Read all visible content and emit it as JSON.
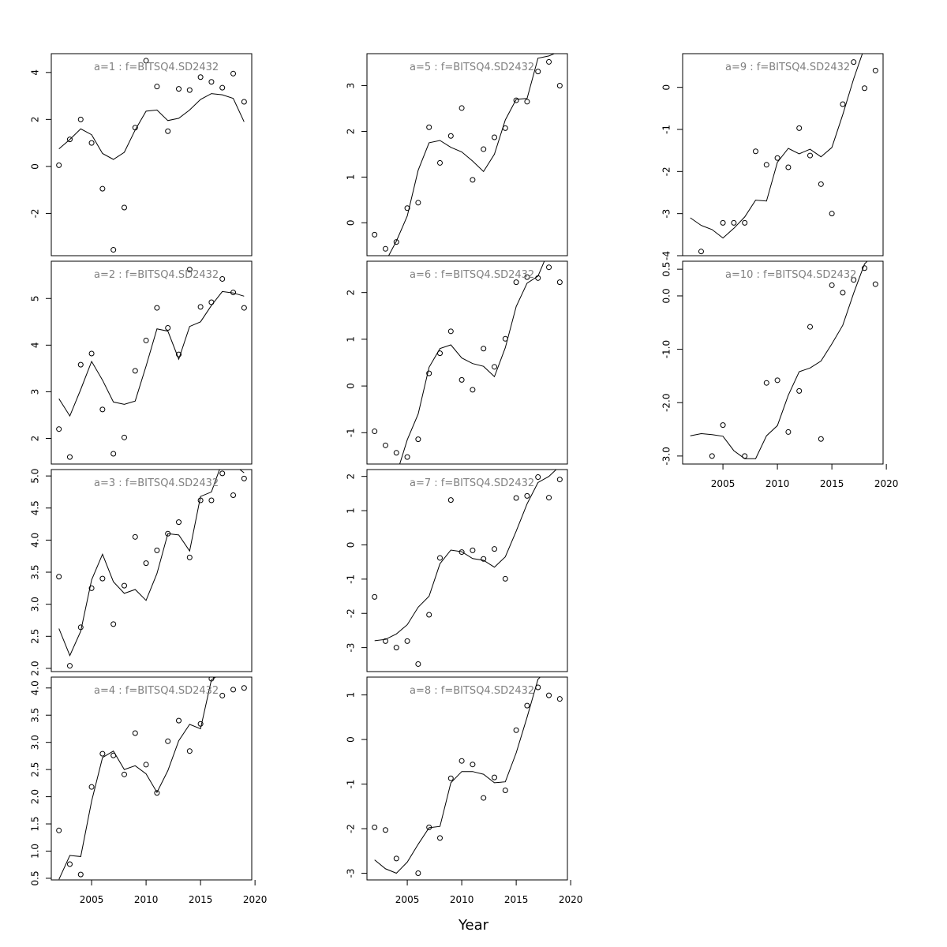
{
  "figure": {
    "xlabel": "Year"
  },
  "chart_data": [
    {
      "type": "scatter",
      "title": "a=1  :  f=BITSQ4.SD2432",
      "x": [
        2002,
        2003,
        2004,
        2005,
        2006,
        2007,
        2008,
        2009,
        2010,
        2011,
        2012,
        2013,
        2014,
        2015,
        2016,
        2017,
        2018,
        2019
      ],
      "points": [
        0.05,
        1.15,
        2.0,
        1.0,
        -0.95,
        -3.55,
        -1.75,
        1.65,
        4.5,
        3.4,
        1.5,
        3.3,
        3.25,
        3.8,
        3.6,
        3.35,
        3.95,
        2.75
      ],
      "fit": [
        0.75,
        1.15,
        1.6,
        1.35,
        0.55,
        0.3,
        0.6,
        1.55,
        2.35,
        2.4,
        1.95,
        2.05,
        2.4,
        2.85,
        3.1,
        3.05,
        2.9,
        1.9
      ],
      "ylim": [
        -3.8,
        4.8
      ],
      "yticks": [
        "-2",
        "0",
        "2",
        "4"
      ],
      "ytick_vals": [
        -2,
        0,
        2,
        4
      ],
      "xlim": [
        2001.3,
        2019.7
      ],
      "xticks": [
        "2005",
        "2010",
        "2015",
        "2020"
      ],
      "xtick_vals": [
        2005,
        2010,
        2015,
        2020
      ],
      "show_xaxis": false
    },
    {
      "type": "scatter",
      "title": "a=2  :  f=BITSQ4.SD2432",
      "x": [
        2002,
        2003,
        2004,
        2005,
        2006,
        2007,
        2008,
        2009,
        2010,
        2011,
        2012,
        2013,
        2014,
        2015,
        2016,
        2017,
        2018,
        2019
      ],
      "points": [
        2.2,
        1.6,
        3.58,
        3.82,
        2.62,
        1.67,
        2.02,
        3.45,
        4.1,
        4.8,
        4.37,
        3.8,
        5.62,
        4.82,
        4.92,
        5.42,
        5.13,
        4.8
      ],
      "fit": [
        2.85,
        2.48,
        3.05,
        3.65,
        3.25,
        2.78,
        2.73,
        2.8,
        3.55,
        4.35,
        4.3,
        3.7,
        4.4,
        4.5,
        4.85,
        5.15,
        5.12,
        5.05
      ],
      "ylim": [
        1.45,
        5.8
      ],
      "yticks": [
        "2",
        "3",
        "4",
        "5"
      ],
      "ytick_vals": [
        2,
        3,
        4,
        5
      ],
      "xlim": [
        2001.3,
        2019.7
      ],
      "xticks": [
        "2005",
        "2010",
        "2015",
        "2020"
      ],
      "xtick_vals": [
        2005,
        2010,
        2015,
        2020
      ],
      "show_xaxis": false
    },
    {
      "type": "scatter",
      "title": "a=3  :  f=BITSQ4.SD2432",
      "x": [
        2002,
        2003,
        2004,
        2005,
        2006,
        2007,
        2008,
        2009,
        2010,
        2011,
        2012,
        2013,
        2014,
        2015,
        2016,
        2017,
        2018,
        2019
      ],
      "points": [
        3.43,
        2.04,
        2.64,
        3.25,
        3.4,
        2.69,
        3.29,
        4.05,
        3.64,
        3.84,
        4.1,
        4.28,
        3.73,
        4.62,
        4.62,
        5.04,
        4.7,
        4.96
      ],
      "fit": [
        2.62,
        2.2,
        2.58,
        3.38,
        3.78,
        3.35,
        3.17,
        3.23,
        3.06,
        3.48,
        4.1,
        4.08,
        3.83,
        4.68,
        4.75,
        5.22,
        5.18,
        5.05
      ],
      "ylim": [
        1.95,
        5.1
      ],
      "yticks": [
        "2.0",
        "2.5",
        "3.0",
        "3.5",
        "4.0",
        "4.5",
        "5.0"
      ],
      "ytick_vals": [
        2.0,
        2.5,
        3.0,
        3.5,
        4.0,
        4.5,
        5.0
      ],
      "xlim": [
        2001.3,
        2019.7
      ],
      "xticks": [
        "2005",
        "2010",
        "2015",
        "2020"
      ],
      "xtick_vals": [
        2005,
        2010,
        2015,
        2020
      ],
      "show_xaxis": false
    },
    {
      "type": "scatter",
      "title": "a=4  :  f=BITSQ4.SD2432",
      "x": [
        2002,
        2003,
        2004,
        2005,
        2006,
        2007,
        2008,
        2009,
        2010,
        2011,
        2012,
        2013,
        2014,
        2015,
        2016,
        2017,
        2018,
        2019
      ],
      "points": [
        1.38,
        0.76,
        0.57,
        2.18,
        2.79,
        2.76,
        2.41,
        3.17,
        2.59,
        2.07,
        3.02,
        3.4,
        2.84,
        3.34,
        4.17,
        3.86,
        3.97,
        4.0
      ],
      "fit": [
        0.48,
        0.92,
        0.9,
        1.92,
        2.72,
        2.84,
        2.5,
        2.57,
        2.42,
        2.08,
        2.48,
        3.03,
        3.33,
        3.25,
        4.15,
        4.28,
        4.25,
        4.2
      ],
      "ylim": [
        0.47,
        4.2
      ],
      "yticks": [
        "0.5",
        "1.0",
        "1.5",
        "2.0",
        "2.5",
        "3.0",
        "3.5",
        "4.0"
      ],
      "ytick_vals": [
        0.5,
        1.0,
        1.5,
        2.0,
        2.5,
        3.0,
        3.5,
        4.0
      ],
      "xlim": [
        2001.3,
        2019.7
      ],
      "xticks": [
        "2005",
        "2010",
        "2015",
        "2020"
      ],
      "xtick_vals": [
        2005,
        2010,
        2015,
        2020
      ],
      "show_xaxis": true
    },
    {
      "type": "scatter",
      "title": "a=5  :  f=BITSQ4.SD2432",
      "x": [
        2002,
        2003,
        2004,
        2005,
        2006,
        2007,
        2008,
        2009,
        2010,
        2011,
        2012,
        2013,
        2014,
        2015,
        2016,
        2017,
        2018,
        2019
      ],
      "points": [
        -0.26,
        -0.57,
        -0.42,
        0.32,
        0.44,
        2.09,
        1.31,
        1.9,
        2.51,
        0.94,
        1.61,
        1.87,
        2.07,
        2.68,
        2.65,
        3.31,
        3.52,
        3.0
      ],
      "fit": [
        -1.05,
        -0.85,
        -0.4,
        0.15,
        1.15,
        1.75,
        1.8,
        1.65,
        1.55,
        1.35,
        1.12,
        1.5,
        2.25,
        2.7,
        2.72,
        3.6,
        3.65,
        3.75
      ],
      "ylim": [
        -0.72,
        3.7
      ],
      "yticks": [
        "0",
        "1",
        "2",
        "3"
      ],
      "ytick_vals": [
        0,
        1,
        2,
        3
      ],
      "xlim": [
        2001.3,
        2019.7
      ],
      "xticks": [
        "2005",
        "2010",
        "2015",
        "2020"
      ],
      "xtick_vals": [
        2005,
        2010,
        2015,
        2020
      ],
      "show_xaxis": false
    },
    {
      "type": "scatter",
      "title": "a=6  :  f=BITSQ4.SD2432",
      "x": [
        2002,
        2003,
        2004,
        2005,
        2006,
        2007,
        2008,
        2009,
        2010,
        2011,
        2012,
        2013,
        2014,
        2015,
        2016,
        2017,
        2018,
        2019
      ],
      "points": [
        -0.97,
        -1.27,
        -1.43,
        -1.52,
        -1.14,
        0.27,
        0.7,
        1.17,
        0.13,
        -0.08,
        0.8,
        0.41,
        1.01,
        2.22,
        2.33,
        2.31,
        2.54,
        2.22
      ],
      "fit": [
        -2.2,
        -2.0,
        -1.9,
        -1.15,
        -0.6,
        0.4,
        0.8,
        0.88,
        0.6,
        0.48,
        0.42,
        0.2,
        0.82,
        1.7,
        2.2,
        2.35,
        2.9,
        3.0
      ],
      "ylim": [
        -1.67,
        2.67
      ],
      "yticks": [
        "-1",
        "0",
        "1",
        "2"
      ],
      "ytick_vals": [
        -1,
        0,
        1,
        2
      ],
      "xlim": [
        2001.3,
        2019.7
      ],
      "xticks": [
        "2005",
        "2010",
        "2015",
        "2020"
      ],
      "xtick_vals": [
        2005,
        2010,
        2015,
        2020
      ],
      "show_xaxis": false
    },
    {
      "type": "scatter",
      "title": "a=7  :  f=BITSQ4.SD2432",
      "x": [
        2002,
        2003,
        2004,
        2005,
        2006,
        2007,
        2008,
        2009,
        2010,
        2011,
        2012,
        2013,
        2014,
        2015,
        2016,
        2017,
        2018,
        2019
      ],
      "points": [
        -1.52,
        -2.81,
        -3.0,
        -2.81,
        -3.48,
        -2.04,
        -0.38,
        1.31,
        -0.21,
        -0.16,
        -0.41,
        -0.12,
        -0.99,
        1.37,
        1.43,
        1.98,
        1.38,
        1.91
      ],
      "fit": [
        -2.8,
        -2.76,
        -2.6,
        -2.33,
        -1.82,
        -1.5,
        -0.55,
        -0.15,
        -0.2,
        -0.4,
        -0.45,
        -0.65,
        -0.35,
        0.4,
        1.2,
        1.82,
        2.0,
        2.3
      ],
      "ylim": [
        -3.7,
        2.2
      ],
      "yticks": [
        "-3",
        "-2",
        "-1",
        "0",
        "1",
        "2"
      ],
      "ytick_vals": [
        -3,
        -2,
        -1,
        0,
        1,
        2
      ],
      "xlim": [
        2001.3,
        2019.7
      ],
      "xticks": [
        "2005",
        "2010",
        "2015",
        "2020"
      ],
      "xtick_vals": [
        2005,
        2010,
        2015,
        2020
      ],
      "show_xaxis": false
    },
    {
      "type": "scatter",
      "title": "a=8  :  f=BITSQ4.SD2432",
      "x": [
        2002,
        2003,
        2004,
        2005,
        2006,
        2007,
        2008,
        2009,
        2010,
        2011,
        2012,
        2013,
        2014,
        2015,
        2016,
        2017,
        2018,
        2019
      ],
      "points": [
        -1.97,
        -2.03,
        -2.67,
        null,
        -3.0,
        -1.97,
        -2.21,
        -0.87,
        -0.48,
        -0.56,
        -1.31,
        -0.85,
        -1.14,
        0.21,
        0.76,
        1.17,
        0.99,
        0.91
      ],
      "fit": [
        -2.7,
        -2.9,
        -3.0,
        -2.75,
        -2.35,
        -1.98,
        -1.95,
        -0.97,
        -0.72,
        -0.72,
        -0.78,
        -0.97,
        -0.95,
        -0.3,
        0.5,
        1.35,
        1.6,
        1.8
      ],
      "ylim": [
        -3.15,
        1.4
      ],
      "yticks": [
        "-3",
        "-2",
        "-1",
        "0",
        "1"
      ],
      "ytick_vals": [
        -3,
        -2,
        -1,
        0,
        1
      ],
      "xlim": [
        2001.3,
        2019.7
      ],
      "xticks": [
        "2005",
        "2010",
        "2015",
        "2020"
      ],
      "xtick_vals": [
        2005,
        2010,
        2015,
        2020
      ],
      "show_xaxis": true
    },
    {
      "type": "scatter",
      "title": "a=9  :  f=BITSQ4.SD2432",
      "x": [
        2002,
        2003,
        2004,
        2005,
        2006,
        2007,
        2008,
        2009,
        2010,
        2011,
        2012,
        2013,
        2014,
        2015,
        2016,
        2017,
        2018,
        2019
      ],
      "points": [
        null,
        -3.9,
        null,
        -3.22,
        -3.22,
        -3.22,
        -1.52,
        -1.84,
        -1.68,
        -1.9,
        -0.97,
        -1.62,
        -2.3,
        -3.0,
        -0.4,
        0.6,
        -0.02,
        0.4
      ],
      "fit": [
        -3.1,
        -3.28,
        -3.38,
        -3.58,
        -3.35,
        -3.08,
        -2.68,
        -2.7,
        -1.78,
        -1.45,
        -1.58,
        -1.47,
        -1.65,
        -1.43,
        -0.65,
        0.2,
        0.95,
        1.2
      ],
      "ylim": [
        -4.0,
        0.8
      ],
      "yticks": [
        "-4",
        "-3",
        "-2",
        "-1",
        "0"
      ],
      "ytick_vals": [
        -4,
        -3,
        -2,
        -1,
        0
      ],
      "xlim": [
        2001.3,
        2019.7
      ],
      "xticks": [
        "2005",
        "2010",
        "2015",
        "2020"
      ],
      "xtick_vals": [
        2005,
        2010,
        2015,
        2020
      ],
      "show_xaxis": false
    },
    {
      "type": "scatter",
      "title": "a=10  :  f=BITSQ4.SD2432",
      "x": [
        2002,
        2003,
        2004,
        2005,
        2006,
        2007,
        2008,
        2009,
        2010,
        2011,
        2012,
        2013,
        2014,
        2015,
        2016,
        2017,
        2018,
        2019
      ],
      "points": [
        null,
        null,
        -3.0,
        -2.42,
        null,
        -3.0,
        null,
        -1.63,
        -1.58,
        -2.55,
        -1.78,
        -0.58,
        -2.68,
        0.2,
        0.06,
        0.3,
        0.52,
        0.22
      ],
      "fit": [
        -2.62,
        -2.58,
        -2.6,
        -2.63,
        -2.9,
        -3.05,
        -3.05,
        -2.62,
        -2.43,
        -1.86,
        -1.42,
        -1.35,
        -1.22,
        -0.9,
        -0.55,
        0.05,
        0.6,
        0.8
      ],
      "ylim": [
        -3.15,
        0.65
      ],
      "yticks": [
        "-3.0",
        "-2.0",
        "-1.0",
        "0.0",
        "0.5"
      ],
      "ytick_vals": [
        -3.0,
        -2.0,
        -1.0,
        0.0,
        0.5
      ],
      "xlim": [
        2001.3,
        2019.7
      ],
      "xticks": [
        "2005",
        "2010",
        "2015",
        "2020"
      ],
      "xtick_vals": [
        2005,
        2010,
        2015,
        2020
      ],
      "show_xaxis": true
    }
  ]
}
